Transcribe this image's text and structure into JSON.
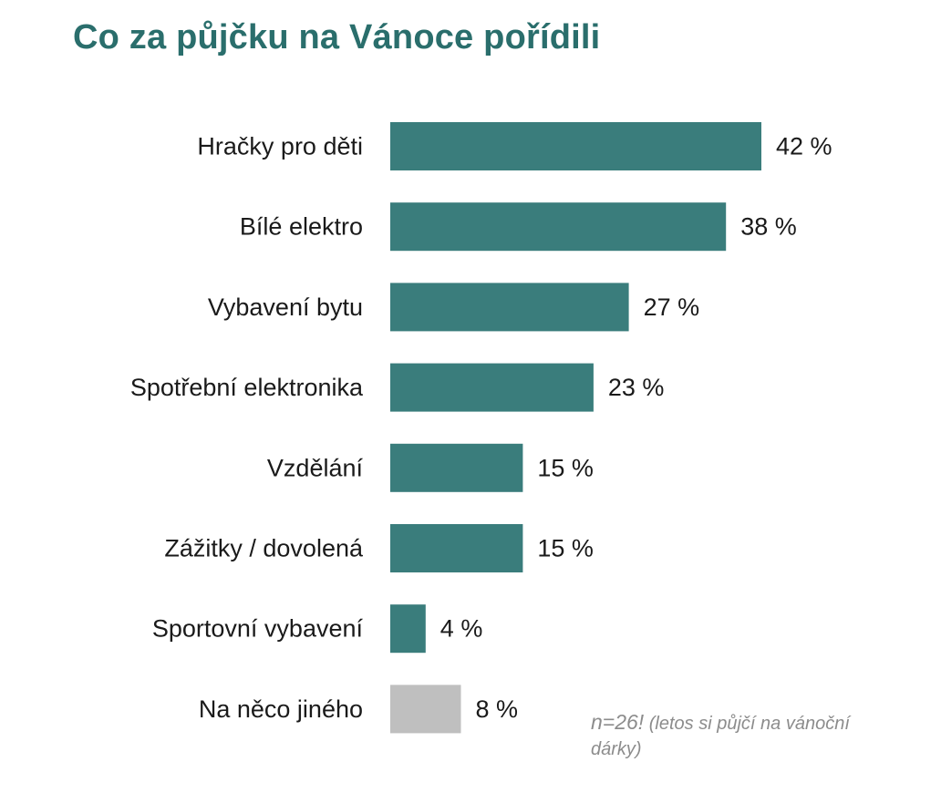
{
  "chart_data": {
    "type": "bar",
    "orientation": "horizontal",
    "title": "Co za půjčku na Vánoce pořídili",
    "categories": [
      "Hračky pro děti",
      "Bílé elektro",
      "Vybavení bytu",
      "Spotřební elektronika",
      "Vzdělání",
      "Zážitky / dovolená",
      "Sportovní vybavení",
      "Na něco jiného"
    ],
    "values": [
      42,
      38,
      27,
      23,
      15,
      15,
      4,
      8
    ],
    "value_labels": [
      "42 %",
      "38 %",
      "27 %",
      "23 %",
      "15 %",
      "15 %",
      "4 %",
      "8 %"
    ],
    "bar_colors": [
      "#3a7d7c",
      "#3a7d7c",
      "#3a7d7c",
      "#3a7d7c",
      "#3a7d7c",
      "#3a7d7c",
      "#3a7d7c",
      "#bfbfbf"
    ],
    "xlim": [
      0,
      42
    ],
    "grid": false,
    "legend": "none",
    "note": {
      "sample": "n=26!",
      "text": " (letos si půjčí na vánoční dárky)"
    }
  },
  "colors": {
    "title": "#2a6e6c",
    "accent_bar": "#3a7d7c",
    "other_bar": "#bfbfbf",
    "note": "#8c8c8c"
  }
}
